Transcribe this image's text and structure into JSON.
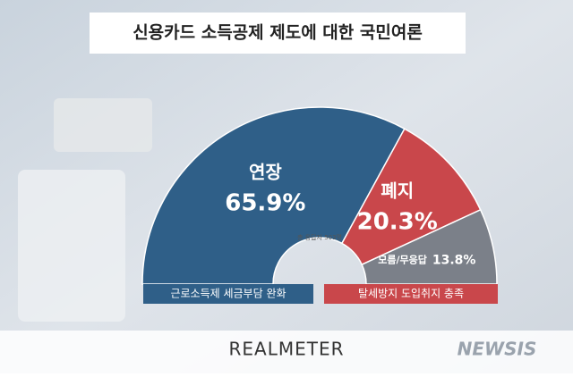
{
  "chart_data": {
    "type": "pie",
    "semicircle": true,
    "title": "신용카드 소득공제 제도에 대한 국민여론",
    "subtitle": "총 응답자 503명",
    "categories": [
      "연장",
      "폐지",
      "모름/무응답"
    ],
    "values": [
      65.9,
      20.3,
      13.8
    ],
    "value_labels": [
      "65.9%",
      "20.3%",
      "13.8%"
    ],
    "colors": [
      "#2f5f88",
      "#c9474b",
      "#7b8089"
    ],
    "annotations": [
      "근로소득제 세금부담 완화",
      "탈세방지 도입취지 충족"
    ],
    "source": "REALMETER",
    "watermark": "NEWSIS"
  }
}
